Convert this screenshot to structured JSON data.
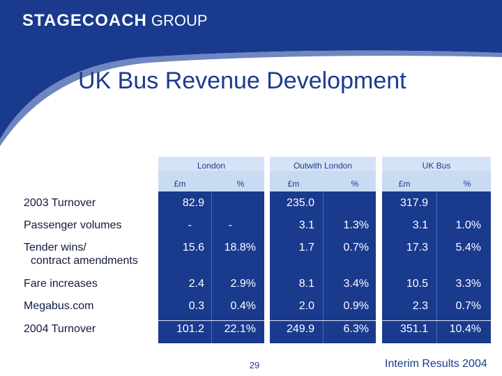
{
  "brand": {
    "bold": "STAGECOACH",
    "light": "GROUP"
  },
  "title": "UK Bus Revenue Development",
  "groups": [
    {
      "name": "London",
      "unit_a": "£m",
      "unit_b": "%"
    },
    {
      "name": "Outwith London",
      "unit_a": "£m",
      "unit_b": "%"
    },
    {
      "name": "UK Bus",
      "unit_a": "£m",
      "unit_b": "%"
    }
  ],
  "rows": [
    {
      "label": "2003 Turnover",
      "label2": "",
      "cells": [
        "82.9",
        "",
        "235.0",
        "",
        "317.9",
        ""
      ]
    },
    {
      "label": "Passenger volumes",
      "label2": "",
      "cells": [
        "-",
        "-",
        "3.1",
        "1.3%",
        "3.1",
        "1.0%"
      ]
    },
    {
      "label": "Tender wins/",
      "label2": "contract amendments",
      "cells": [
        "15.6",
        "18.8%",
        "1.7",
        "0.7%",
        "17.3",
        "5.4%"
      ]
    },
    {
      "label": "Fare increases",
      "label2": "",
      "cells": [
        "2.4",
        "2.9%",
        "8.1",
        "3.4%",
        "10.5",
        "3.3%"
      ]
    },
    {
      "label": "Megabus.com",
      "label2": "",
      "cells": [
        "0.3",
        "0.4%",
        "2.0",
        "0.9%",
        "2.3",
        "0.7%"
      ]
    },
    {
      "label": "2004 Turnover",
      "label2": "",
      "cells": [
        "101.2",
        "22.1%",
        "249.9",
        "6.3%",
        "351.1",
        "10.4%"
      ]
    }
  ],
  "footer": {
    "page": "29",
    "text": "Interim Results 2004"
  },
  "colors": {
    "navy": "#1a3a8e",
    "title": "#1b3a8f",
    "header_band": "#d6e3f6"
  }
}
